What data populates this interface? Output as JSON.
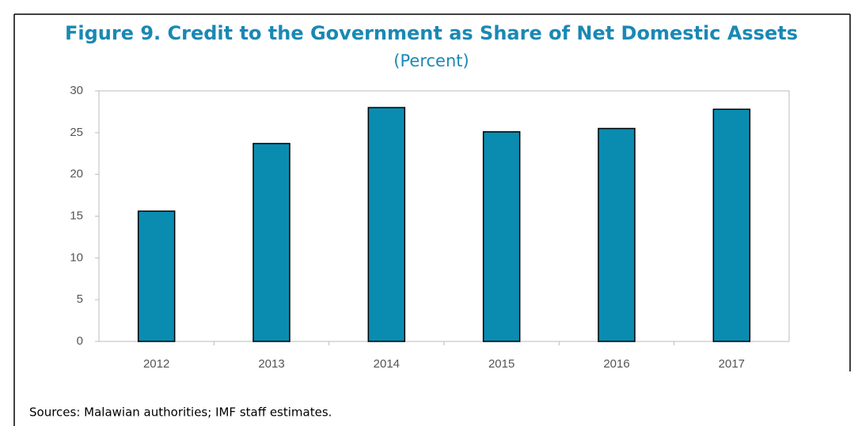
{
  "chart_data": {
    "type": "bar",
    "title": "Figure 9. Credit to the Government as Share of Net Domestic Assets",
    "subtitle": "(Percent)",
    "note": "Sources: Malawian authorities; IMF staff estimates.",
    "categories": [
      "2012",
      "2013",
      "2014",
      "2015",
      "2016",
      "2017"
    ],
    "values": [
      15.6,
      23.7,
      28.0,
      25.1,
      25.5,
      27.8
    ],
    "color": "#0a8cb0",
    "ylim": [
      0,
      30
    ],
    "yticks": [
      0,
      5,
      10,
      15,
      20,
      25,
      30
    ],
    "grid": false
  }
}
